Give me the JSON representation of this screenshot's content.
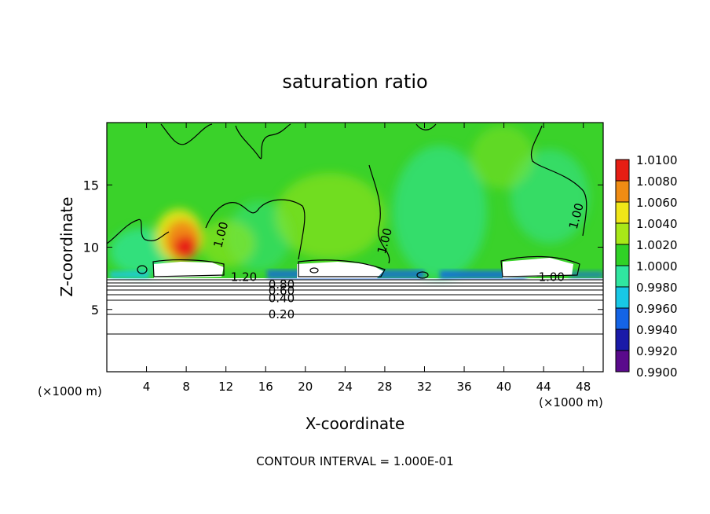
{
  "chart_data": {
    "type": "heatmap",
    "title": "saturation ratio",
    "xlabel": "X-coordinate",
    "ylabel": "Z-coordinate",
    "x_unit_left": "(×1000 m)",
    "x_unit_right": "(×1000 m)",
    "xlim": [
      0,
      50
    ],
    "ylim": [
      0,
      20
    ],
    "x_ticks": [
      "4",
      "8",
      "12",
      "16",
      "20",
      "24",
      "28",
      "32",
      "36",
      "40",
      "44",
      "48"
    ],
    "y_ticks": [
      "5",
      "10",
      "15"
    ],
    "colorbar": {
      "levels": [
        "0.9900",
        "0.9920",
        "0.9940",
        "0.9960",
        "0.9980",
        "1.0000",
        "1.0020",
        "1.0040",
        "1.0060",
        "1.0080",
        "1.0100"
      ],
      "colors": [
        "#5a0a8c",
        "#1a1aa8",
        "#1464e6",
        "#18c8e6",
        "#30e6a0",
        "#30d226",
        "#a8e818",
        "#f0e618",
        "#f08c14",
        "#e61e14",
        "#f08c8c"
      ]
    },
    "contour_labels": [
      {
        "text": "1.20",
        "x": 13.8,
        "y": 7.6
      },
      {
        "text": "0.80",
        "x": 17.6,
        "y": 7.0
      },
      {
        "text": "0.60",
        "x": 17.6,
        "y": 6.5
      },
      {
        "text": "0.40",
        "x": 17.6,
        "y": 5.9
      },
      {
        "text": "0.20",
        "x": 17.6,
        "y": 4.6
      },
      {
        "text": "1.00",
        "x": 11.5,
        "y": 11.0
      },
      {
        "text": "1.00",
        "x": 28.0,
        "y": 10.5
      },
      {
        "text": "1.00",
        "x": 47.3,
        "y": 12.5
      },
      {
        "text": "1.00",
        "x": 44.8,
        "y": 7.6
      }
    ],
    "footer": "CONTOUR INTERVAL = 1.000E-01"
  }
}
